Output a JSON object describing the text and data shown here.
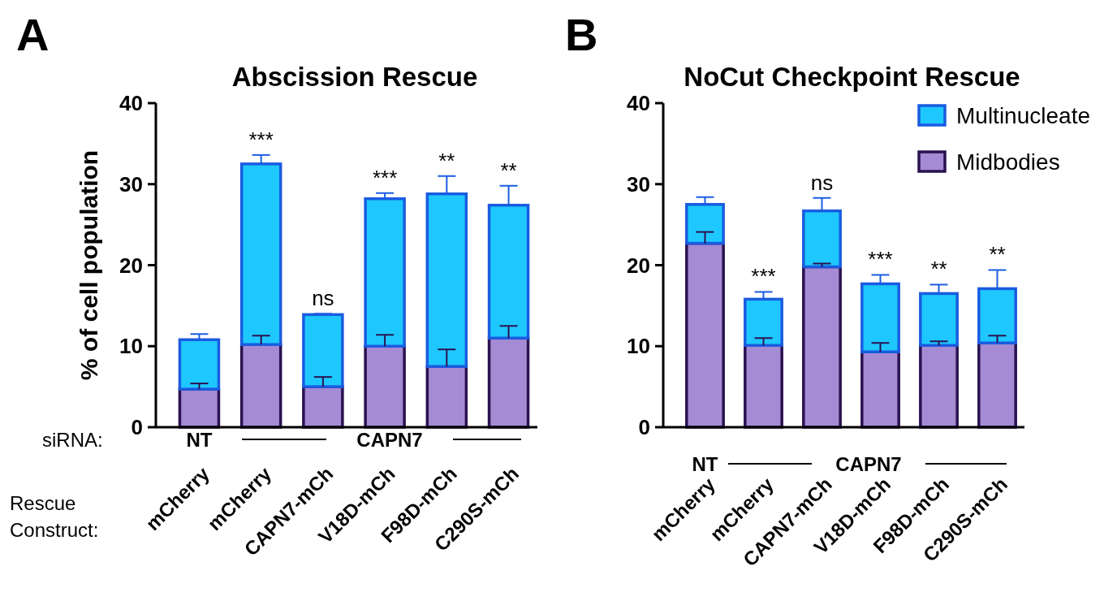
{
  "chart_data": [
    {
      "type": "bar",
      "title": "Abscission Rescue",
      "ylabel": "% of cell population",
      "categories": [
        "mCherry",
        "mCherry",
        "CAPN7-mCh",
        "V18D-mCh",
        "F98D-mCh",
        "C290S-mCh"
      ],
      "stacked": true,
      "ylim": [
        0,
        40
      ],
      "yticks": [
        0,
        10,
        20,
        30,
        40
      ],
      "grid": false,
      "legend": false,
      "series": [
        {
          "color": "#a58bd4",
          "values": [
            4.7,
            10.2,
            5.0,
            10.0,
            7.5,
            11.0
          ],
          "errors": [
            [
              4.7,
              5.4
            ],
            [
              10.2,
              11.3
            ],
            [
              5.0,
              6.2
            ],
            [
              10.0,
              11.4
            ],
            [
              7.5,
              9.6
            ],
            [
              11.0,
              12.5
            ]
          ]
        },
        {
          "color": "#1ec8ff",
          "values": [
            6.1,
            22.3,
            8.9,
            18.2,
            21.3,
            16.4
          ],
          "errors": [
            [
              10.8,
              11.5
            ],
            [
              32.5,
              33.6
            ],
            [
              13.9,
              14.0
            ],
            [
              28.2,
              28.9
            ],
            [
              28.8,
              31.0
            ],
            [
              27.4,
              29.8
            ]
          ],
          "value_labels": [
            null,
            "***",
            "ns",
            "***",
            "**",
            "**"
          ]
        }
      ],
      "annotations": [
        "A",
        "siRNA:",
        "NT",
        "CAPN7",
        "Rescue Construct:"
      ]
    },
    {
      "type": "bar",
      "title": "NoCut Checkpoint Rescue",
      "categories": [
        "mCherry",
        "mCherry",
        "CAPN7-mCh",
        "V18D-mCh",
        "F98D-mCh",
        "C290S-mCh"
      ],
      "stacked": true,
      "ylim": [
        0,
        40
      ],
      "yticks": [
        0,
        10,
        20,
        30,
        40
      ],
      "grid": false,
      "legend": "top right",
      "series": [
        {
          "name": "Midbodies",
          "color": "#a58bd4",
          "values": [
            22.7,
            10.1,
            19.8,
            9.3,
            10.1,
            10.4
          ],
          "errors": [
            [
              22.7,
              24.1
            ],
            [
              10.1,
              11.0
            ],
            [
              19.8,
              20.2
            ],
            [
              9.3,
              10.4
            ],
            [
              10.1,
              10.6
            ],
            [
              10.4,
              11.3
            ]
          ]
        },
        {
          "name": "Multinucleate",
          "color": "#1ec8ff",
          "values": [
            4.8,
            5.7,
            6.9,
            8.4,
            6.4,
            6.7
          ],
          "errors": [
            [
              27.5,
              28.4
            ],
            [
              15.8,
              16.7
            ],
            [
              26.7,
              28.3
            ],
            [
              17.7,
              18.8
            ],
            [
              16.5,
              17.6
            ],
            [
              17.1,
              19.4
            ]
          ],
          "value_labels": [
            null,
            "***",
            "ns",
            "***",
            "**",
            "**"
          ]
        }
      ],
      "annotations": [
        "B",
        "NT",
        "CAPN7"
      ]
    }
  ]
}
